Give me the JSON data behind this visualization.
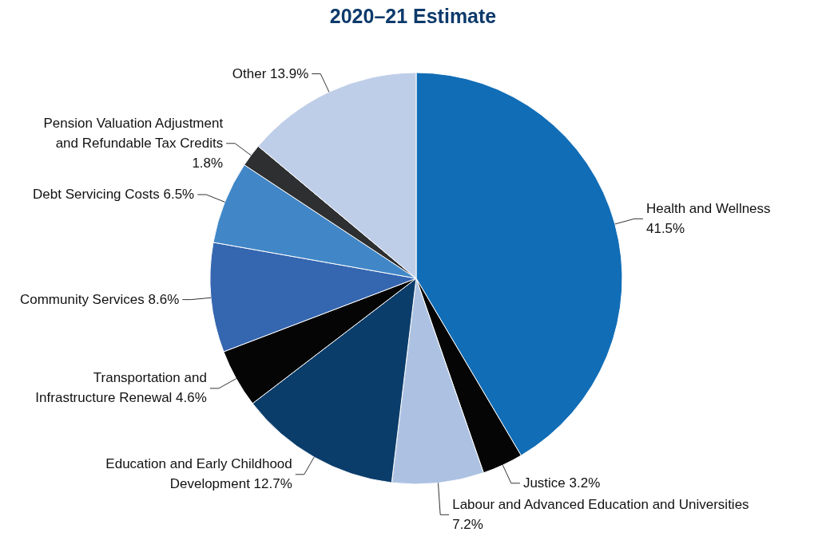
{
  "chart_data": {
    "type": "pie",
    "title": "2020–21 Estimate",
    "categories": [
      "Health and Wellness",
      "Justice",
      "Labour and Advanced Education and Universities",
      "Education and Early Childhood Development",
      "Transportation and Infrastructure Renewal",
      "Community Services",
      "Debt Servicing Costs",
      "Pension Valuation Adjustment and Refundable Tax Credits",
      "Other"
    ],
    "values": [
      41.5,
      3.2,
      7.2,
      12.7,
      4.6,
      8.6,
      6.5,
      1.8,
      13.9
    ],
    "value_labels": [
      "41.5%",
      "3.2%",
      "7.2%",
      "12.7%",
      "4.6%",
      "8.6%",
      "6.5%",
      "1.8%",
      "13.9%"
    ],
    "colors": [
      "#116db6",
      "#050505",
      "#adc2e2",
      "#0b3d6b",
      "#050505",
      "#3566b0",
      "#4187c7",
      "#2d2f30",
      "#bfcee8"
    ],
    "legend": false
  }
}
